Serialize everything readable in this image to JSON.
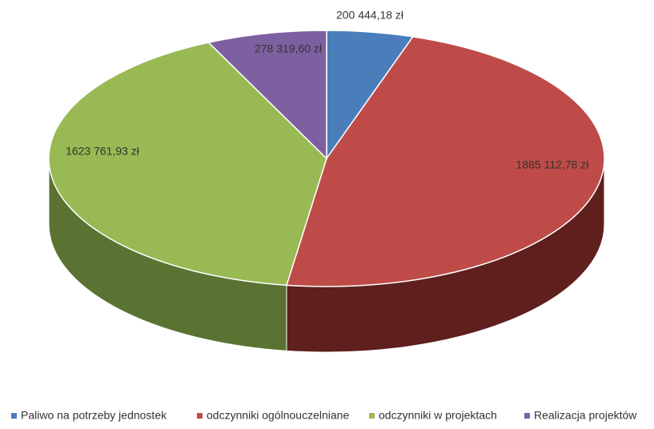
{
  "chart_data": {
    "type": "pie",
    "categories": [
      "Paliwo na potrzeby jednostek",
      "odczynniki ogólnouczelniane",
      "odczynniki w projektach",
      "Realizacja projektów"
    ],
    "values": [
      200444.18,
      1885112.78,
      1623761.93,
      278319.6
    ],
    "value_labels": [
      "200 444,18 zł",
      "1885 112,78 zł",
      "1623 761,93 zł",
      "278 319,60 zł"
    ],
    "colors": [
      "#4a7ebb",
      "#be4b48",
      "#98b954",
      "#7d60a0"
    ],
    "side_colors": [
      "#2c4c72",
      "#5e1f1d",
      "#5b7332",
      "#4b3a60"
    ],
    "legend": "bottom"
  }
}
